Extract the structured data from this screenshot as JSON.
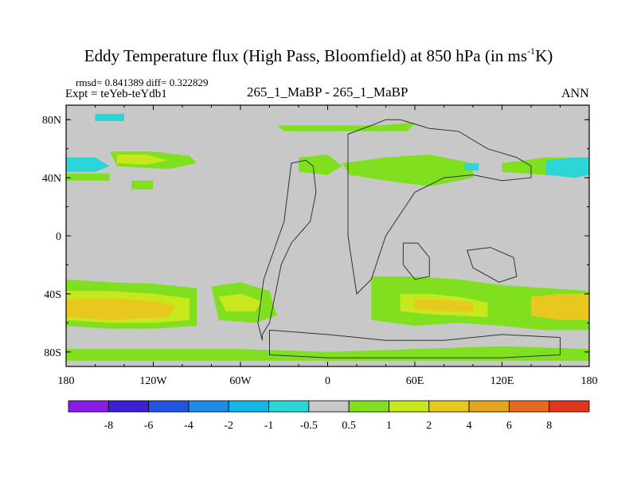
{
  "chart_data": {
    "type": "heatmap",
    "title_parts": [
      "Eddy Temperature flux (High Pass, Bloomfield) at 850 hPa (in ms",
      "-1",
      "K)"
    ],
    "stats_text": "rmsd= 0.841389 diff= 0.322829",
    "experiment_text": "Expt = teYeb-teYdb1",
    "center_label": "265_1_MaBP - 265_1_MaBP",
    "season_label": "ANN",
    "x_ticks": [
      "180",
      "120W",
      "60W",
      "0",
      "60E",
      "120E",
      "180"
    ],
    "y_ticks": [
      "80N",
      "40N",
      "0",
      "40S",
      "80S"
    ],
    "xlim": [
      -180,
      180
    ],
    "ylim": [
      -90,
      90
    ],
    "colorbar": {
      "colors": [
        "#8a1be6",
        "#3c1fd6",
        "#1f55e0",
        "#1e8be6",
        "#14b6e6",
        "#2dd6d6",
        "#c8c8c8",
        "#80e020",
        "#c8e81e",
        "#e8c81e",
        "#e6a51e",
        "#e66a1e",
        "#e2351e"
      ],
      "labels": [
        "-8",
        "-6",
        "-4",
        "-2",
        "-1",
        "-0.5",
        "0.5",
        "1",
        "2",
        "4",
        "6",
        "8"
      ]
    },
    "regions": [
      {
        "level": "1",
        "lon": [
          -180,
          -150,
          -120,
          -90,
          -90,
          -120,
          -150,
          -180
        ],
        "lat": [
          -30,
          -32,
          -33,
          -36,
          -62,
          -64,
          -64,
          -62
        ]
      },
      {
        "level": "2",
        "lon": [
          -180,
          -150,
          -120,
          -95,
          -95,
          -120,
          -150,
          -180
        ],
        "lat": [
          -38,
          -38,
          -40,
          -43,
          -58,
          -60,
          -60,
          -58
        ]
      },
      {
        "level": "4",
        "lon": [
          -180,
          -150,
          -120,
          -105,
          -110,
          -150,
          -180
        ],
        "lat": [
          -44,
          -43,
          -45,
          -48,
          -56,
          -58,
          -56
        ]
      },
      {
        "level": "1",
        "lon": [
          -80,
          -60,
          -40,
          -35,
          -50,
          -75
        ],
        "lat": [
          -35,
          -32,
          -38,
          -55,
          -60,
          -58
        ]
      },
      {
        "level": "2",
        "lon": [
          -75,
          -60,
          -45,
          -50,
          -70
        ],
        "lat": [
          -42,
          -40,
          -45,
          -52,
          -52
        ]
      },
      {
        "level": "1",
        "lon": [
          30,
          60,
          90,
          120,
          150,
          180,
          180,
          150,
          120,
          90,
          60,
          30
        ],
        "lat": [
          -28,
          -28,
          -30,
          -34,
          -36,
          -38,
          -65,
          -65,
          -62,
          -60,
          -62,
          -58
        ]
      },
      {
        "level": "2",
        "lon": [
          50,
          70,
          90,
          110,
          110,
          90,
          70,
          50
        ],
        "lat": [
          -40,
          -40,
          -42,
          -46,
          -56,
          -55,
          -54,
          -52
        ]
      },
      {
        "level": "4",
        "lon": [
          140,
          160,
          180,
          180,
          160,
          140
        ],
        "lat": [
          -42,
          -40,
          -40,
          -58,
          -58,
          -55
        ]
      },
      {
        "level": "4",
        "lon": [
          60,
          80,
          100,
          100,
          80,
          60
        ],
        "lat": [
          -44,
          -44,
          -46,
          -52,
          -52,
          -50
        ]
      },
      {
        "level": "1",
        "lon": [
          -150,
          -120,
          -95,
          -90,
          -110,
          -145
        ],
        "lat": [
          58,
          58,
          55,
          50,
          46,
          48
        ]
      },
      {
        "level": "2",
        "lon": [
          -145,
          -125,
          -110,
          -125,
          -145
        ],
        "lat": [
          56,
          56,
          52,
          49,
          50
        ]
      },
      {
        "level": "1",
        "lon": [
          -20,
          0,
          10,
          0,
          -20
        ],
        "lat": [
          54,
          56,
          48,
          42,
          44
        ]
      },
      {
        "level": "1",
        "lon": [
          -35,
          -5,
          35,
          60,
          55,
          30,
          -5,
          -30
        ],
        "lat": [
          76,
          76,
          76,
          78,
          72,
          72,
          72,
          72
        ]
      },
      {
        "level": "1",
        "lon": [
          10,
          40,
          70,
          100,
          100,
          70,
          40,
          15
        ],
        "lat": [
          50,
          54,
          56,
          50,
          40,
          34,
          38,
          42
        ]
      },
      {
        "level": "1",
        "lon": [
          -180,
          -150,
          -150,
          -180
        ],
        "lat": [
          43,
          43,
          38,
          38
        ]
      },
      {
        "level": "1",
        "lon": [
          -135,
          -120,
          -120,
          -135
        ],
        "lat": [
          38,
          38,
          32,
          32
        ]
      },
      {
        "level": "1",
        "lon": [
          120,
          150,
          180,
          180,
          150,
          120
        ],
        "lat": [
          50,
          54,
          54,
          42,
          42,
          44
        ]
      },
      {
        "level": "-1",
        "lon": [
          -180,
          -160,
          -150,
          -160,
          -180
        ],
        "lat": [
          54,
          54,
          48,
          44,
          44
        ]
      },
      {
        "level": "-1",
        "lon": [
          -160,
          -140,
          -140,
          -160
        ],
        "lat": [
          84,
          84,
          79,
          79
        ]
      },
      {
        "level": "-1",
        "lon": [
          150,
          170,
          180,
          180,
          170,
          150
        ],
        "lat": [
          52,
          54,
          54,
          42,
          40,
          42
        ]
      },
      {
        "level": "-1",
        "lon": [
          94,
          104,
          104,
          94
        ],
        "lat": [
          50,
          50,
          45,
          45
        ]
      },
      {
        "level": "1",
        "lon": [
          -180,
          -120,
          -60,
          0,
          60,
          120,
          180,
          180,
          120,
          60,
          0,
          -60,
          -120,
          -180
        ],
        "lat": [
          -78,
          -78,
          -78,
          -80,
          -78,
          -76,
          -78,
          -86,
          -86,
          -86,
          -86,
          -86,
          -86,
          -86
        ]
      }
    ],
    "continents": [
      {
        "lon": [
          -25,
          -15,
          -10,
          -8,
          -12,
          -25,
          -32,
          -36,
          -40,
          -45,
          -45,
          -48,
          -44,
          -30,
          -25
        ],
        "lat": [
          50,
          52,
          48,
          30,
          10,
          -5,
          -20,
          -40,
          -60,
          -68,
          -72,
          -60,
          -30,
          10,
          50
        ]
      },
      {
        "lon": [
          14,
          30,
          40,
          50,
          70,
          90,
          110,
          130,
          140,
          140,
          120,
          100,
          80,
          60,
          40,
          30,
          20,
          14
        ],
        "lat": [
          70,
          76,
          80,
          80,
          74,
          72,
          60,
          54,
          48,
          40,
          38,
          42,
          40,
          30,
          0,
          -30,
          -40,
          0
        ]
      },
      {
        "lon": [
          52,
          62,
          70,
          70,
          60,
          52
        ],
        "lat": [
          -5,
          -5,
          -15,
          -28,
          -30,
          -20
        ]
      },
      {
        "lon": [
          96,
          112,
          128,
          130,
          118,
          100,
          96
        ],
        "lat": [
          -10,
          -8,
          -15,
          -28,
          -32,
          -22,
          -10
        ]
      },
      {
        "lon": [
          -40,
          0,
          40,
          80,
          120,
          160,
          160,
          120,
          80,
          40,
          0,
          -40
        ],
        "lat": [
          -65,
          -68,
          -72,
          -72,
          -68,
          -70,
          -82,
          -84,
          -84,
          -84,
          -84,
          -82
        ]
      }
    ]
  }
}
